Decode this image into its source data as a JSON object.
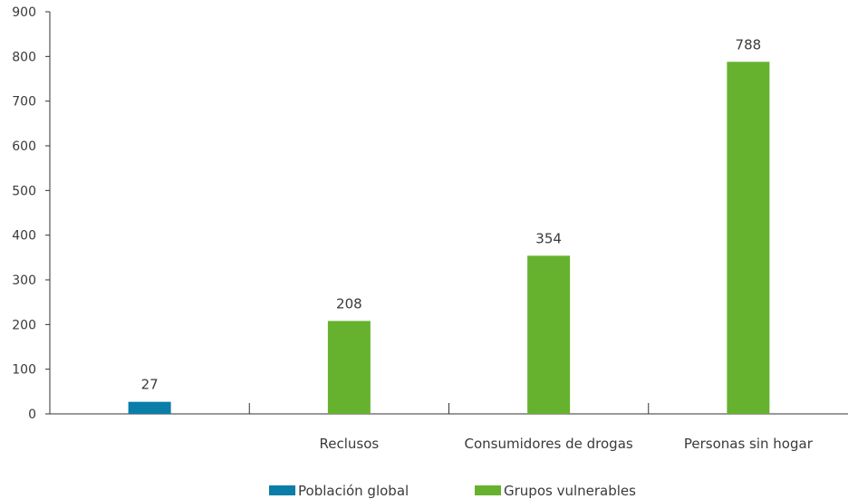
{
  "chart_data": {
    "type": "bar",
    "categories": [
      "",
      "Reclusos",
      "Consumidores de drogas",
      "Personas sin hogar"
    ],
    "values": [
      27,
      208,
      354,
      788
    ],
    "value_labels": [
      "27",
      "208",
      "354",
      "788"
    ],
    "bar_series": [
      "Población global",
      "Grupos vulnerables",
      "Grupos vulnerables",
      "Grupos vulnerables"
    ],
    "ylim": [
      0,
      900
    ],
    "yticks": [
      0,
      100,
      200,
      300,
      400,
      500,
      600,
      700,
      800,
      900
    ],
    "ytick_labels": [
      "0",
      "100",
      "200",
      "300",
      "400",
      "500",
      "600",
      "700",
      "800",
      "900"
    ],
    "grid": false,
    "legend_position": "bottom",
    "series": [
      {
        "name": "Población global",
        "color": "#0a7ea8"
      },
      {
        "name": "Grupos vulnerables",
        "color": "#66b22f"
      }
    ]
  }
}
